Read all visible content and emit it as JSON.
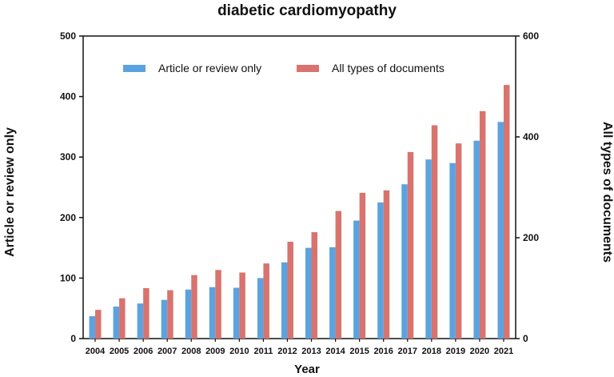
{
  "chart_data": {
    "type": "bar",
    "title": "diabetic cardiomyopathy",
    "xlabel": "Year",
    "ylabel": "Article or review only",
    "y2label": "All types of documents",
    "categories": [
      "2004",
      "2005",
      "2006",
      "2007",
      "2008",
      "2009",
      "2010",
      "2011",
      "2012",
      "2013",
      "2014",
      "2015",
      "2016",
      "2017",
      "2018",
      "2019",
      "2020",
      "2021"
    ],
    "ylim": [
      0,
      500
    ],
    "y2lim": [
      0,
      600
    ],
    "yticks": [
      0,
      100,
      200,
      300,
      400,
      500
    ],
    "y2ticks": [
      0,
      200,
      400,
      600
    ],
    "legend_position": "top-left",
    "series": [
      {
        "name": "Article or review only",
        "axis": "left",
        "color": "#5ba3e0",
        "values": [
          37,
          53,
          58,
          64,
          81,
          85,
          84,
          100,
          126,
          150,
          151,
          195,
          225,
          255,
          296,
          290,
          327,
          358
        ]
      },
      {
        "name": "All types of documents",
        "axis": "right",
        "color": "#d9736e",
        "values": [
          57,
          80,
          100,
          96,
          126,
          136,
          131,
          149,
          192,
          211,
          253,
          289,
          294,
          370,
          423,
          387,
          451,
          503
        ]
      }
    ]
  }
}
